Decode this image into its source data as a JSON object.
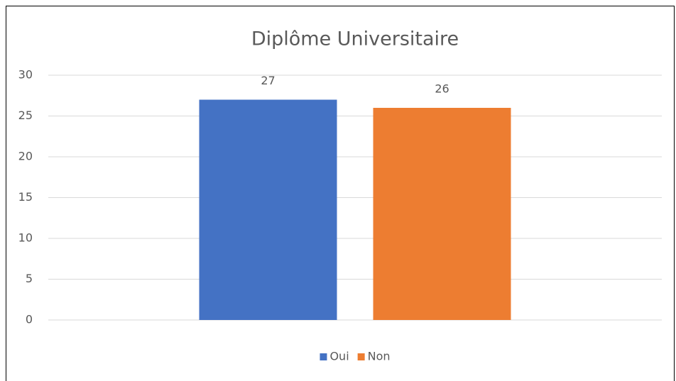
{
  "chart_data": {
    "type": "bar",
    "title": "Diplôme Universitaire",
    "categories": [
      null
    ],
    "series": [
      {
        "name": "Oui",
        "color": "#4472c4",
        "values": [
          27
        ]
      },
      {
        "name": "Non",
        "color": "#ed7d31",
        "values": [
          26
        ]
      }
    ],
    "ylim": [
      0,
      30
    ],
    "yticks": [
      0,
      5,
      10,
      15,
      20,
      25,
      30
    ],
    "grid": true,
    "legend": "bottom"
  }
}
